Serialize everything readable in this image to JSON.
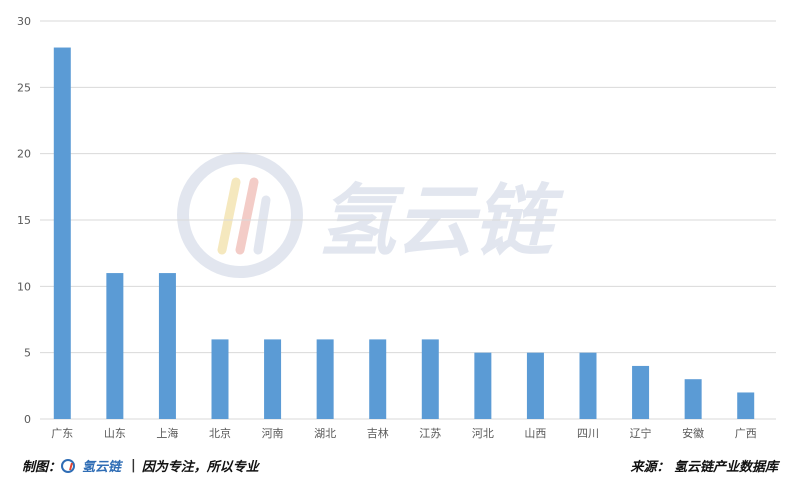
{
  "chart_data": {
    "type": "bar",
    "categories": [
      "广东",
      "山东",
      "上海",
      "北京",
      "河南",
      "湖北",
      "吉林",
      "江苏",
      "河北",
      "山西",
      "四川",
      "辽宁",
      "安徽",
      "广西"
    ],
    "values": [
      28,
      11,
      11,
      6,
      6,
      6,
      6,
      6,
      5,
      5,
      5,
      4,
      3,
      2
    ],
    "ylim": [
      0,
      30
    ],
    "yticks": [
      0,
      5,
      10,
      15,
      20,
      25,
      30
    ],
    "grid": true,
    "bar_color": "#5b9bd5",
    "grid_color": "#d9d9d9"
  },
  "watermark": {
    "text": "氢云链"
  },
  "footer": {
    "left_label": "制图：",
    "brand": "氢云链",
    "sep": "|",
    "slogan": "因为专注，所以专业",
    "source": "来源： 氢云链产业数据库"
  }
}
